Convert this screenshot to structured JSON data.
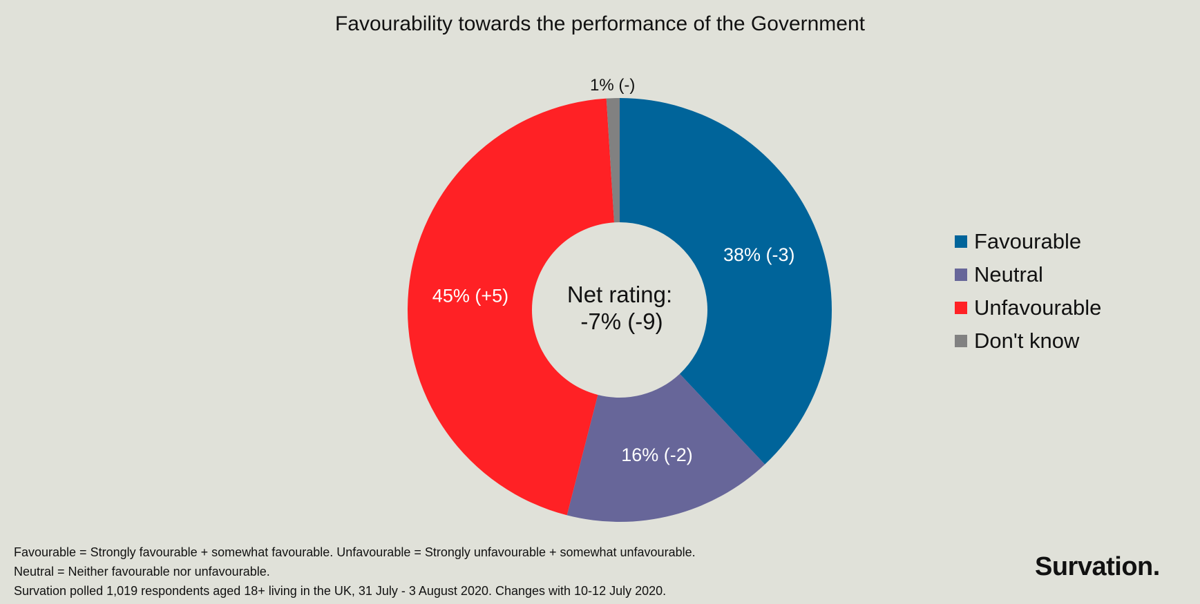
{
  "chart_data": {
    "type": "pie",
    "donut": true,
    "title": "Favourability towards the performance of the Government",
    "categories": [
      "Favourable",
      "Neutral",
      "Unfavourable",
      "Don't know"
    ],
    "values": [
      38,
      16,
      45,
      1
    ],
    "changes": [
      "-3",
      "-2",
      "+5",
      "-"
    ],
    "data_labels": [
      "38% (-3)",
      "16% (-2)",
      "45% (+5)",
      "1% (-)"
    ],
    "colors": [
      "#00649a",
      "#676699",
      "#ff2125",
      "#818181"
    ],
    "center_label": {
      "line1": "Net rating:",
      "line2": "-7% (-9)"
    },
    "legend_position": "right"
  },
  "footer": {
    "lines": [
      "Favourable = Strongly favourable + somewhat favourable. Unfavourable = Strongly unfavourable + somewhat unfavourable.",
      "Neutral = Neither favourable nor unfavourable.",
      "Survation polled 1,019 respondents aged 18+ living in the UK, 31 July - 3 August 2020. Changes with 10-12 July 2020."
    ]
  },
  "logo": "Survation."
}
